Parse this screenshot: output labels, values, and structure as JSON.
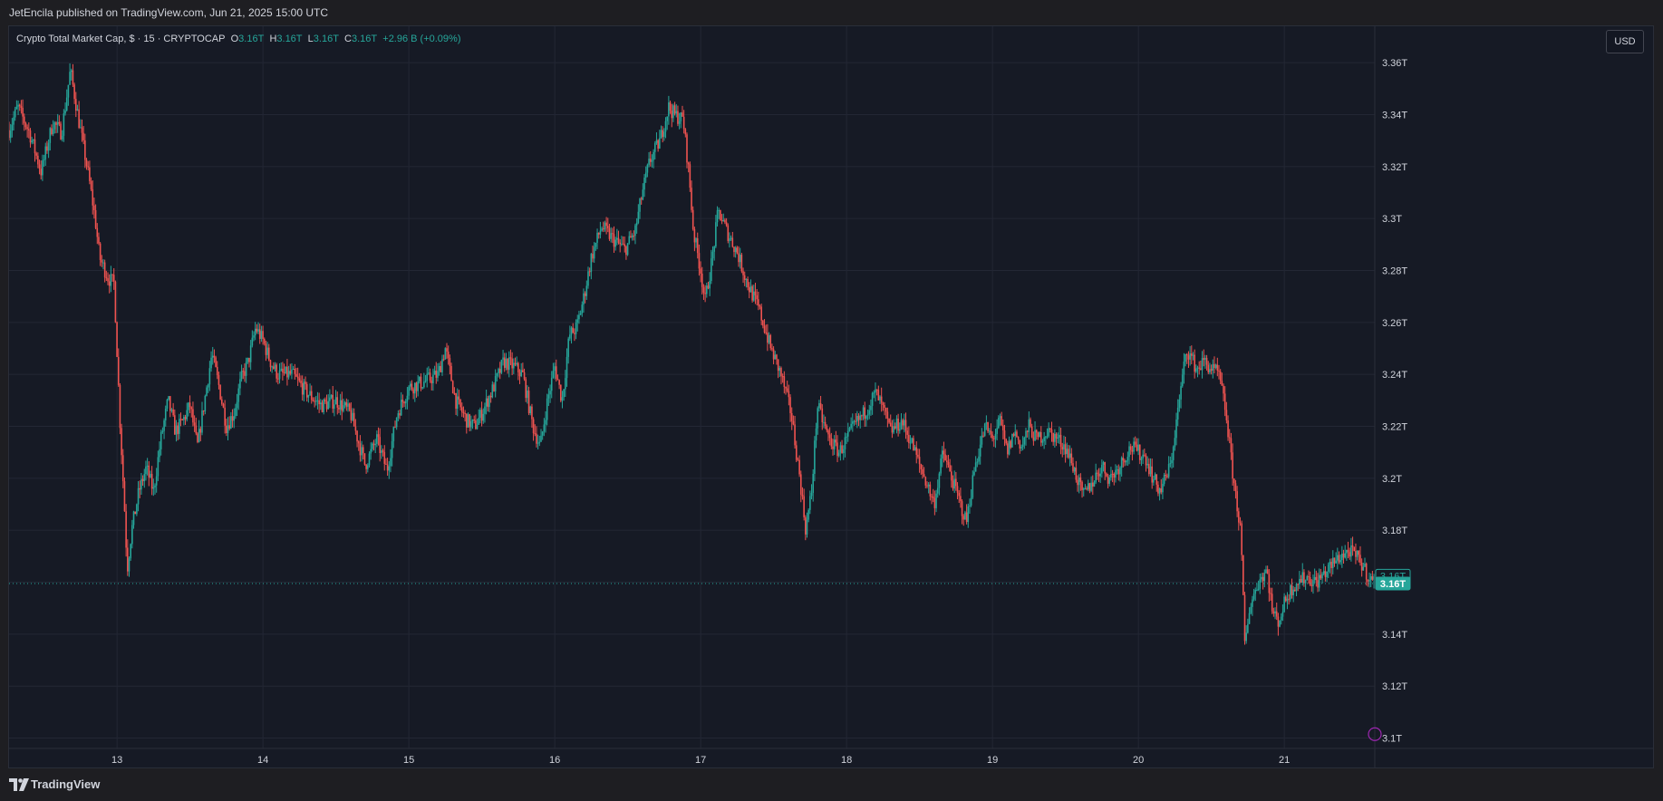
{
  "header": {
    "published_text": "JetEncila published on TradingView.com, Jun 21, 2025 15:00 UTC"
  },
  "legend": {
    "symbol": "Crypto Total Market Cap, $ · 15 · CRYPTOCAP",
    "o_label": "O",
    "o_value": "3.16T",
    "h_label": "H",
    "h_value": "3.16T",
    "l_label": "L",
    "l_value": "3.16T",
    "c_label": "C",
    "c_value": "3.16T",
    "change": "+2.96 B (+0.09%)"
  },
  "currency_button": "USD",
  "footer": {
    "brand": "TradingView",
    "logo_icon": "tradingview-logo-icon"
  },
  "colors": {
    "up": "#26a69a",
    "down": "#ef5350",
    "background": "#161a25",
    "grid": "#232734",
    "axis_text": "#d1d4dc"
  },
  "chart_data": {
    "type": "candlestick",
    "title": "Crypto Total Market Cap, $ · 15 · CRYPTOCAP",
    "x_tick_labels": [
      "13",
      "14",
      "15",
      "16",
      "17",
      "18",
      "19",
      "20",
      "21"
    ],
    "x_range": [
      12.26,
      21.62
    ],
    "y_tick_labels": [
      "3.36T",
      "3.34T",
      "3.32T",
      "3.3T",
      "3.28T",
      "3.26T",
      "3.24T",
      "3.22T",
      "3.2T",
      "3.18T",
      "3.16T",
      "3.14T",
      "3.12T",
      "3.1T"
    ],
    "y_ticks": [
      3.36,
      3.34,
      3.32,
      3.3,
      3.28,
      3.26,
      3.24,
      3.22,
      3.2,
      3.18,
      3.16,
      3.14,
      3.12,
      3.1
    ],
    "y_range": [
      3.096,
      3.374
    ],
    "unit": "T USD",
    "grid": true,
    "price_labels": [
      {
        "text": "3.16T",
        "value": 3.1625,
        "style": "outline"
      },
      {
        "text": "3.16T",
        "value": 3.1595,
        "style": "filled"
      }
    ],
    "last_price_line": 3.1595,
    "close_path": [
      [
        12.26,
        3.334
      ],
      [
        12.32,
        3.343
      ],
      [
        12.4,
        3.333
      ],
      [
        12.48,
        3.318
      ],
      [
        12.56,
        3.337
      ],
      [
        12.62,
        3.333
      ],
      [
        12.68,
        3.357
      ],
      [
        12.74,
        3.337
      ],
      [
        12.8,
        3.318
      ],
      [
        12.85,
        3.3
      ],
      [
        12.88,
        3.285
      ],
      [
        12.94,
        3.277
      ],
      [
        12.98,
        3.275
      ],
      [
        13.02,
        3.222
      ],
      [
        13.05,
        3.19
      ],
      [
        13.07,
        3.165
      ],
      [
        13.1,
        3.18
      ],
      [
        13.15,
        3.195
      ],
      [
        13.2,
        3.204
      ],
      [
        13.25,
        3.195
      ],
      [
        13.3,
        3.215
      ],
      [
        13.35,
        3.23
      ],
      [
        13.4,
        3.218
      ],
      [
        13.45,
        3.222
      ],
      [
        13.5,
        3.228
      ],
      [
        13.55,
        3.212
      ],
      [
        13.6,
        3.23
      ],
      [
        13.65,
        3.248
      ],
      [
        13.7,
        3.235
      ],
      [
        13.75,
        3.22
      ],
      [
        13.8,
        3.225
      ],
      [
        13.85,
        3.238
      ],
      [
        13.9,
        3.245
      ],
      [
        13.95,
        3.258
      ],
      [
        14.0,
        3.253
      ],
      [
        14.05,
        3.245
      ],
      [
        14.1,
        3.24
      ],
      [
        14.2,
        3.24
      ],
      [
        14.3,
        3.233
      ],
      [
        14.4,
        3.228
      ],
      [
        14.5,
        3.23
      ],
      [
        14.6,
        3.225
      ],
      [
        14.65,
        3.215
      ],
      [
        14.7,
        3.205
      ],
      [
        14.78,
        3.215
      ],
      [
        14.85,
        3.203
      ],
      [
        14.92,
        3.225
      ],
      [
        15.0,
        3.235
      ],
      [
        15.1,
        3.237
      ],
      [
        15.2,
        3.24
      ],
      [
        15.25,
        3.25
      ],
      [
        15.32,
        3.23
      ],
      [
        15.4,
        3.222
      ],
      [
        15.45,
        3.22
      ],
      [
        15.5,
        3.225
      ],
      [
        15.58,
        3.235
      ],
      [
        15.65,
        3.245
      ],
      [
        15.72,
        3.243
      ],
      [
        15.78,
        3.24
      ],
      [
        15.85,
        3.22
      ],
      [
        15.9,
        3.212
      ],
      [
        15.95,
        3.23
      ],
      [
        16.0,
        3.243
      ],
      [
        16.05,
        3.23
      ],
      [
        16.1,
        3.255
      ],
      [
        16.15,
        3.258
      ],
      [
        16.2,
        3.27
      ],
      [
        16.25,
        3.285
      ],
      [
        16.32,
        3.297
      ],
      [
        16.4,
        3.292
      ],
      [
        16.48,
        3.288
      ],
      [
        16.55,
        3.295
      ],
      [
        16.6,
        3.31
      ],
      [
        16.65,
        3.322
      ],
      [
        16.72,
        3.33
      ],
      [
        16.78,
        3.343
      ],
      [
        16.82,
        3.34
      ],
      [
        16.88,
        3.338
      ],
      [
        16.92,
        3.317
      ],
      [
        16.95,
        3.295
      ],
      [
        17.0,
        3.28
      ],
      [
        17.03,
        3.268
      ],
      [
        17.08,
        3.285
      ],
      [
        17.12,
        3.303
      ],
      [
        17.18,
        3.295
      ],
      [
        17.25,
        3.287
      ],
      [
        17.32,
        3.275
      ],
      [
        17.4,
        3.265
      ],
      [
        17.48,
        3.25
      ],
      [
        17.55,
        3.24
      ],
      [
        17.62,
        3.225
      ],
      [
        17.68,
        3.2
      ],
      [
        17.72,
        3.18
      ],
      [
        17.76,
        3.195
      ],
      [
        17.8,
        3.228
      ],
      [
        17.88,
        3.215
      ],
      [
        17.95,
        3.21
      ],
      [
        18.0,
        3.215
      ],
      [
        18.05,
        3.22
      ],
      [
        18.12,
        3.225
      ],
      [
        18.2,
        3.233
      ],
      [
        18.26,
        3.225
      ],
      [
        18.3,
        3.218
      ],
      [
        18.38,
        3.222
      ],
      [
        18.45,
        3.213
      ],
      [
        18.5,
        3.205
      ],
      [
        18.55,
        3.198
      ],
      [
        18.6,
        3.19
      ],
      [
        18.66,
        3.21
      ],
      [
        18.72,
        3.2
      ],
      [
        18.78,
        3.19
      ],
      [
        18.82,
        3.183
      ],
      [
        18.88,
        3.205
      ],
      [
        18.95,
        3.22
      ],
      [
        19.0,
        3.215
      ],
      [
        19.05,
        3.222
      ],
      [
        19.1,
        3.21
      ],
      [
        19.15,
        3.218
      ],
      [
        19.2,
        3.212
      ],
      [
        19.25,
        3.22
      ],
      [
        19.3,
        3.215
      ],
      [
        19.38,
        3.218
      ],
      [
        19.45,
        3.215
      ],
      [
        19.5,
        3.212
      ],
      [
        19.55,
        3.205
      ],
      [
        19.62,
        3.193
      ],
      [
        19.7,
        3.2
      ],
      [
        19.75,
        3.205
      ],
      [
        19.8,
        3.2
      ],
      [
        19.85,
        3.203
      ],
      [
        19.9,
        3.208
      ],
      [
        19.95,
        3.212
      ],
      [
        20.0,
        3.21
      ],
      [
        20.05,
        3.208
      ],
      [
        20.1,
        3.2
      ],
      [
        20.15,
        3.195
      ],
      [
        20.22,
        3.205
      ],
      [
        20.28,
        3.23
      ],
      [
        20.33,
        3.25
      ],
      [
        20.4,
        3.242
      ],
      [
        20.45,
        3.245
      ],
      [
        20.5,
        3.242
      ],
      [
        20.55,
        3.24
      ],
      [
        20.6,
        3.225
      ],
      [
        20.65,
        3.2
      ],
      [
        20.7,
        3.18
      ],
      [
        20.73,
        3.135
      ],
      [
        20.76,
        3.15
      ],
      [
        20.82,
        3.16
      ],
      [
        20.88,
        3.165
      ],
      [
        20.92,
        3.148
      ],
      [
        20.96,
        3.145
      ],
      [
        21.02,
        3.155
      ],
      [
        21.08,
        3.16
      ],
      [
        21.15,
        3.162
      ],
      [
        21.22,
        3.16
      ],
      [
        21.3,
        3.165
      ],
      [
        21.38,
        3.17
      ],
      [
        21.45,
        3.172
      ],
      [
        21.52,
        3.168
      ],
      [
        21.58,
        3.162
      ],
      [
        21.62,
        3.1595
      ]
    ]
  }
}
